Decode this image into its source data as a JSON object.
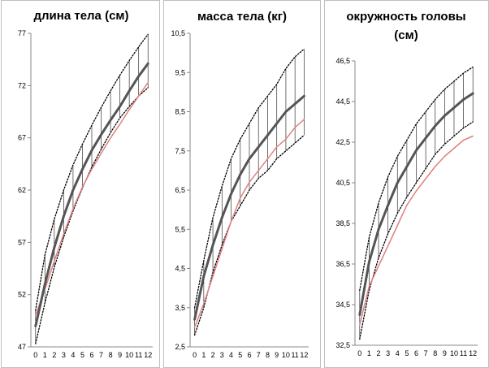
{
  "chart_data": [
    {
      "type": "line",
      "title": "длина тела (см)",
      "title_lines": [
        "длина тела (см)"
      ],
      "xlabel": "",
      "ylabel": "",
      "x": [
        0,
        1,
        2,
        3,
        4,
        5,
        6,
        7,
        8,
        9,
        10,
        11,
        12
      ],
      "y_ticks": [
        "47",
        "52",
        "57",
        "62",
        "67",
        "72",
        "77"
      ],
      "ylim": [
        47,
        77
      ],
      "grid": false,
      "series": [
        {
          "role": "upper",
          "style": "dotted",
          "color": "#000000",
          "values": [
            50.5,
            55.8,
            59.2,
            62.0,
            64.4,
            66.4,
            68.2,
            69.9,
            71.5,
            73.0,
            74.4,
            75.7,
            76.9
          ]
        },
        {
          "role": "lower",
          "style": "dotted",
          "color": "#000000",
          "values": [
            47.3,
            51.2,
            54.6,
            57.5,
            60.0,
            62.2,
            64.2,
            65.9,
            67.5,
            68.9,
            70.0,
            71.0,
            71.8
          ]
        },
        {
          "role": "mean",
          "style": "solid-thick",
          "color": "#555555",
          "values": [
            49.0,
            53.0,
            56.5,
            59.5,
            62.0,
            64.0,
            65.8,
            67.3,
            68.7,
            70.0,
            71.5,
            72.9,
            74.1
          ]
        },
        {
          "role": "child",
          "style": "solid",
          "color": "#e08080",
          "values": [
            50.0,
            52.5,
            55.2,
            57.8,
            60.2,
            62.3,
            64.0,
            65.5,
            67.0,
            68.3,
            69.7,
            71.0,
            72.3
          ]
        }
      ]
    },
    {
      "type": "line",
      "title": "масса тела (кг)",
      "title_lines": [
        "масса тела (кг)"
      ],
      "xlabel": "",
      "ylabel": "",
      "x": [
        0,
        1,
        2,
        3,
        4,
        5,
        6,
        7,
        8,
        9,
        10,
        11,
        12
      ],
      "y_ticks": [
        "2,5",
        "3,5",
        "4,5",
        "5,5",
        "6,5",
        "7,5",
        "8,5",
        "9,5",
        "10,5"
      ],
      "ylim": [
        2.5,
        10.5
      ],
      "grid": false,
      "series": [
        {
          "role": "upper",
          "style": "dotted",
          "color": "#000000",
          "values": [
            3.5,
            4.7,
            5.8,
            6.6,
            7.3,
            7.8,
            8.2,
            8.6,
            8.9,
            9.2,
            9.6,
            9.9,
            10.1
          ]
        },
        {
          "role": "lower",
          "style": "dotted",
          "color": "#000000",
          "values": [
            2.8,
            3.5,
            4.4,
            5.1,
            5.7,
            6.1,
            6.5,
            6.8,
            7.0,
            7.3,
            7.5,
            7.7,
            7.9
          ]
        },
        {
          "role": "mean",
          "style": "solid-thick",
          "color": "#555555",
          "values": [
            3.2,
            4.3,
            5.1,
            5.8,
            6.4,
            6.9,
            7.3,
            7.6,
            7.9,
            8.2,
            8.5,
            8.7,
            8.9
          ]
        },
        {
          "role": "child",
          "style": "solid",
          "color": "#e08080",
          "values": [
            3.0,
            3.6,
            4.3,
            5.0,
            5.7,
            6.3,
            6.7,
            7.0,
            7.3,
            7.6,
            7.8,
            8.1,
            8.3
          ]
        }
      ]
    },
    {
      "type": "line",
      "title": "окружность головы (см)",
      "title_lines": [
        "окружность головы",
        "(см)"
      ],
      "xlabel": "",
      "ylabel": "",
      "x": [
        0,
        1,
        2,
        3,
        4,
        5,
        6,
        7,
        8,
        9,
        10,
        11,
        12
      ],
      "y_ticks": [
        "32,5",
        "34,5",
        "36,5",
        "38,5",
        "40,5",
        "42,5",
        "44,5",
        "46,5"
      ],
      "ylim": [
        32.5,
        46.5
      ],
      "grid": false,
      "series": [
        {
          "role": "upper",
          "style": "dotted",
          "color": "#000000",
          "values": [
            35.2,
            37.8,
            39.5,
            40.8,
            41.8,
            42.6,
            43.4,
            44.0,
            44.6,
            45.1,
            45.5,
            45.9,
            46.2
          ]
        },
        {
          "role": "lower",
          "style": "dotted",
          "color": "#000000",
          "values": [
            32.8,
            35.2,
            36.8,
            38.0,
            39.0,
            39.8,
            40.5,
            41.2,
            41.9,
            42.4,
            42.8,
            43.2,
            43.5
          ]
        },
        {
          "role": "mean",
          "style": "solid-thick",
          "color": "#555555",
          "values": [
            34.0,
            36.6,
            38.2,
            39.4,
            40.5,
            41.3,
            42.1,
            42.7,
            43.3,
            43.8,
            44.2,
            44.6,
            44.9
          ]
        },
        {
          "role": "child",
          "style": "solid",
          "color": "#e08080",
          "values": [
            33.5,
            35.4,
            36.4,
            37.4,
            38.4,
            39.4,
            40.1,
            40.7,
            41.3,
            41.8,
            42.2,
            42.6,
            42.8
          ]
        }
      ]
    }
  ]
}
